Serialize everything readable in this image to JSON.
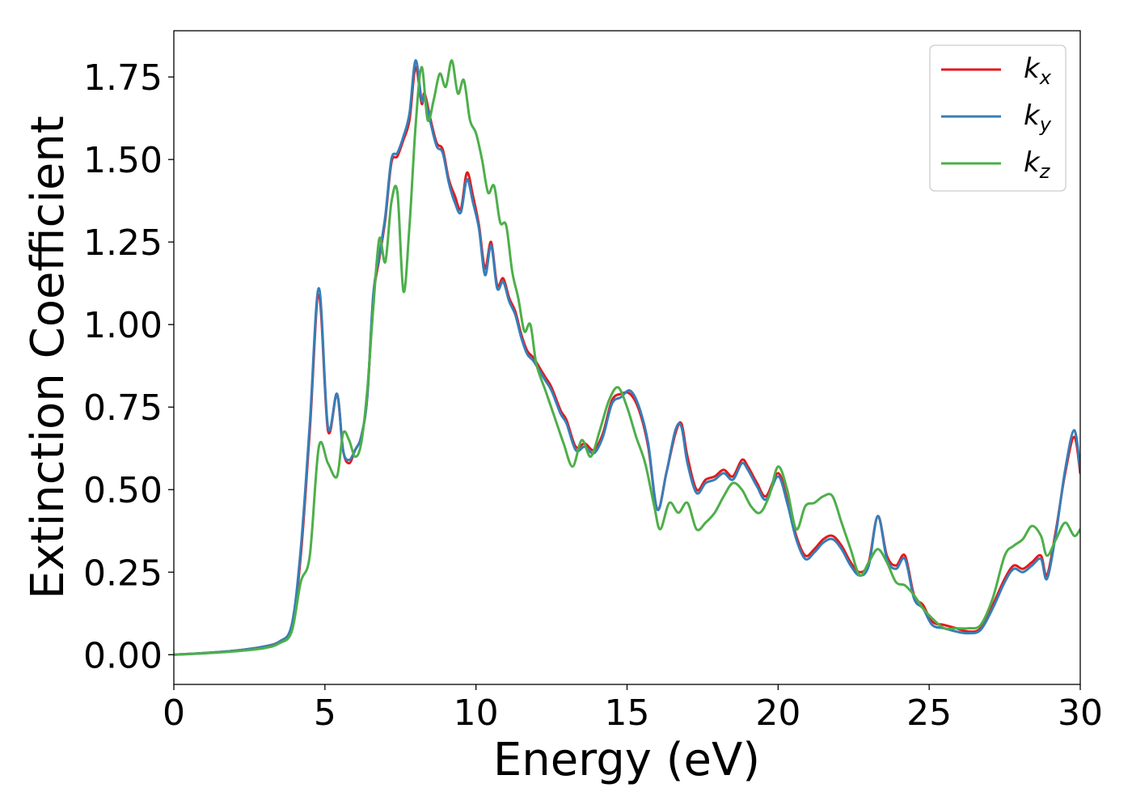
{
  "chart_data": {
    "type": "line",
    "xlabel": "Energy (eV)",
    "ylabel": "Extinction Coefficient",
    "xlim": [
      0,
      30
    ],
    "ylim": [
      -0.09,
      1.89
    ],
    "xticks": [
      0,
      5,
      10,
      15,
      20,
      25,
      30
    ],
    "yticks": [
      0.0,
      0.25,
      0.5,
      0.75,
      1.0,
      1.25,
      1.5,
      1.75
    ],
    "ytick_labels": [
      "0.00",
      "0.25",
      "0.50",
      "0.75",
      "1.00",
      "1.25",
      "1.50",
      "1.75"
    ],
    "grid": false,
    "legend_position": "top-right",
    "series": [
      {
        "name": "k_x",
        "legend_main": "k",
        "legend_sub": "x",
        "color": "#e41a1c",
        "x": [
          0,
          1,
          2,
          3,
          3.5,
          3.9,
          4.2,
          4.5,
          4.8,
          5.1,
          5.4,
          5.6,
          5.8,
          6.0,
          6.2,
          6.4,
          6.6,
          6.8,
          7.0,
          7.2,
          7.4,
          7.6,
          7.8,
          8.0,
          8.2,
          8.3,
          8.5,
          8.7,
          8.9,
          9.1,
          9.3,
          9.5,
          9.7,
          9.9,
          10.1,
          10.3,
          10.5,
          10.7,
          10.9,
          11.1,
          11.3,
          11.5,
          11.7,
          11.9,
          12.1,
          12.3,
          12.5,
          12.8,
          13.0,
          13.3,
          13.6,
          13.9,
          14.2,
          14.5,
          14.8,
          15.1,
          15.4,
          15.7,
          16.0,
          16.3,
          16.6,
          16.8,
          17.0,
          17.3,
          17.6,
          17.9,
          18.2,
          18.5,
          18.8,
          19.0,
          19.3,
          19.6,
          20.0,
          20.3,
          20.6,
          20.9,
          21.2,
          21.5,
          21.8,
          22.1,
          22.4,
          22.7,
          23.0,
          23.3,
          23.6,
          23.9,
          24.2,
          24.5,
          24.8,
          25.1,
          25.5,
          25.9,
          26.3,
          26.7,
          27.1,
          27.5,
          27.8,
          28.1,
          28.4,
          28.7,
          28.9,
          29.2,
          29.5,
          29.8,
          30.0
        ],
        "y": [
          0.0,
          0.005,
          0.012,
          0.025,
          0.04,
          0.08,
          0.3,
          0.68,
          1.09,
          0.68,
          0.79,
          0.62,
          0.58,
          0.62,
          0.66,
          0.78,
          1.08,
          1.2,
          1.32,
          1.49,
          1.51,
          1.56,
          1.62,
          1.78,
          1.67,
          1.7,
          1.62,
          1.55,
          1.53,
          1.44,
          1.39,
          1.35,
          1.46,
          1.39,
          1.3,
          1.17,
          1.25,
          1.12,
          1.14,
          1.08,
          1.04,
          0.97,
          0.92,
          0.9,
          0.87,
          0.84,
          0.81,
          0.74,
          0.71,
          0.63,
          0.64,
          0.62,
          0.67,
          0.77,
          0.79,
          0.79,
          0.74,
          0.63,
          0.44,
          0.55,
          0.67,
          0.7,
          0.6,
          0.5,
          0.53,
          0.54,
          0.56,
          0.54,
          0.59,
          0.57,
          0.52,
          0.48,
          0.55,
          0.47,
          0.36,
          0.3,
          0.32,
          0.35,
          0.36,
          0.33,
          0.28,
          0.25,
          0.28,
          0.42,
          0.3,
          0.27,
          0.3,
          0.18,
          0.15,
          0.1,
          0.09,
          0.08,
          0.07,
          0.08,
          0.15,
          0.23,
          0.27,
          0.26,
          0.28,
          0.3,
          0.24,
          0.38,
          0.55,
          0.66,
          0.55
        ]
      },
      {
        "name": "k_y",
        "legend_main": "k",
        "legend_sub": "y",
        "color": "#377eb8",
        "x": [
          0,
          1,
          2,
          3,
          3.5,
          3.9,
          4.2,
          4.5,
          4.8,
          5.1,
          5.4,
          5.6,
          5.8,
          6.0,
          6.2,
          6.4,
          6.6,
          6.8,
          7.0,
          7.2,
          7.4,
          7.6,
          7.8,
          8.0,
          8.2,
          8.3,
          8.5,
          8.7,
          8.9,
          9.1,
          9.3,
          9.5,
          9.7,
          9.9,
          10.1,
          10.3,
          10.5,
          10.7,
          10.9,
          11.1,
          11.3,
          11.5,
          11.7,
          11.9,
          12.1,
          12.3,
          12.5,
          12.8,
          13.0,
          13.3,
          13.6,
          13.9,
          14.2,
          14.5,
          14.8,
          15.1,
          15.4,
          15.7,
          16.0,
          16.3,
          16.6,
          16.8,
          17.0,
          17.3,
          17.6,
          17.9,
          18.2,
          18.5,
          18.8,
          19.0,
          19.3,
          19.6,
          20.0,
          20.3,
          20.6,
          20.9,
          21.2,
          21.5,
          21.8,
          22.1,
          22.4,
          22.7,
          23.0,
          23.3,
          23.6,
          23.9,
          24.2,
          24.5,
          24.8,
          25.1,
          25.5,
          25.9,
          26.3,
          26.7,
          27.1,
          27.5,
          27.8,
          28.1,
          28.4,
          28.7,
          28.9,
          29.2,
          29.5,
          29.8,
          30.0
        ],
        "y": [
          0.0,
          0.005,
          0.012,
          0.025,
          0.04,
          0.09,
          0.32,
          0.7,
          1.11,
          0.69,
          0.79,
          0.62,
          0.59,
          0.62,
          0.66,
          0.78,
          1.09,
          1.21,
          1.33,
          1.5,
          1.52,
          1.57,
          1.64,
          1.8,
          1.68,
          1.69,
          1.61,
          1.54,
          1.52,
          1.43,
          1.37,
          1.34,
          1.44,
          1.37,
          1.29,
          1.15,
          1.24,
          1.11,
          1.13,
          1.07,
          1.03,
          0.96,
          0.91,
          0.89,
          0.86,
          0.83,
          0.8,
          0.73,
          0.7,
          0.62,
          0.63,
          0.61,
          0.66,
          0.76,
          0.78,
          0.8,
          0.75,
          0.64,
          0.44,
          0.55,
          0.68,
          0.69,
          0.58,
          0.49,
          0.52,
          0.53,
          0.55,
          0.53,
          0.58,
          0.56,
          0.51,
          0.47,
          0.54,
          0.46,
          0.35,
          0.29,
          0.31,
          0.34,
          0.35,
          0.32,
          0.27,
          0.24,
          0.27,
          0.42,
          0.29,
          0.26,
          0.29,
          0.17,
          0.14,
          0.09,
          0.08,
          0.07,
          0.065,
          0.075,
          0.14,
          0.22,
          0.26,
          0.25,
          0.27,
          0.29,
          0.23,
          0.37,
          0.56,
          0.68,
          0.56
        ]
      },
      {
        "name": "k_z",
        "legend_main": "k",
        "legend_sub": "z",
        "color": "#4daf4a",
        "x": [
          0,
          1,
          2,
          3,
          3.5,
          3.9,
          4.2,
          4.5,
          4.8,
          5.1,
          5.4,
          5.6,
          5.8,
          6.0,
          6.2,
          6.4,
          6.6,
          6.8,
          7.0,
          7.2,
          7.4,
          7.6,
          7.8,
          8.0,
          8.2,
          8.4,
          8.6,
          8.8,
          9.0,
          9.2,
          9.4,
          9.6,
          9.8,
          10.0,
          10.2,
          10.4,
          10.6,
          10.8,
          11.0,
          11.2,
          11.4,
          11.6,
          11.8,
          12.0,
          12.3,
          12.6,
          12.9,
          13.2,
          13.5,
          13.8,
          14.1,
          14.4,
          14.7,
          15.0,
          15.3,
          15.6,
          15.9,
          16.1,
          16.4,
          16.7,
          17.0,
          17.3,
          17.6,
          17.9,
          18.2,
          18.5,
          18.8,
          19.1,
          19.4,
          19.7,
          20.0,
          20.3,
          20.6,
          20.9,
          21.2,
          21.5,
          21.8,
          22.1,
          22.4,
          22.7,
          23.0,
          23.3,
          23.6,
          23.9,
          24.2,
          24.5,
          24.8,
          25.1,
          25.5,
          25.9,
          26.3,
          26.7,
          27.1,
          27.5,
          27.8,
          28.1,
          28.4,
          28.7,
          28.9,
          29.2,
          29.5,
          29.8,
          30.0
        ],
        "y": [
          0.0,
          0.004,
          0.01,
          0.02,
          0.035,
          0.07,
          0.22,
          0.3,
          0.63,
          0.58,
          0.54,
          0.67,
          0.65,
          0.6,
          0.64,
          0.8,
          1.05,
          1.26,
          1.19,
          1.37,
          1.4,
          1.1,
          1.3,
          1.6,
          1.78,
          1.62,
          1.68,
          1.76,
          1.72,
          1.8,
          1.7,
          1.74,
          1.62,
          1.58,
          1.5,
          1.4,
          1.42,
          1.31,
          1.3,
          1.16,
          1.08,
          0.98,
          1.0,
          0.88,
          0.8,
          0.72,
          0.64,
          0.57,
          0.65,
          0.6,
          0.68,
          0.77,
          0.81,
          0.75,
          0.66,
          0.58,
          0.45,
          0.38,
          0.46,
          0.43,
          0.46,
          0.38,
          0.4,
          0.43,
          0.48,
          0.52,
          0.5,
          0.45,
          0.43,
          0.48,
          0.57,
          0.5,
          0.38,
          0.45,
          0.46,
          0.48,
          0.48,
          0.4,
          0.32,
          0.24,
          0.28,
          0.32,
          0.28,
          0.22,
          0.21,
          0.18,
          0.14,
          0.11,
          0.08,
          0.08,
          0.08,
          0.09,
          0.17,
          0.3,
          0.33,
          0.35,
          0.39,
          0.36,
          0.3,
          0.35,
          0.4,
          0.36,
          0.38
        ]
      }
    ]
  }
}
